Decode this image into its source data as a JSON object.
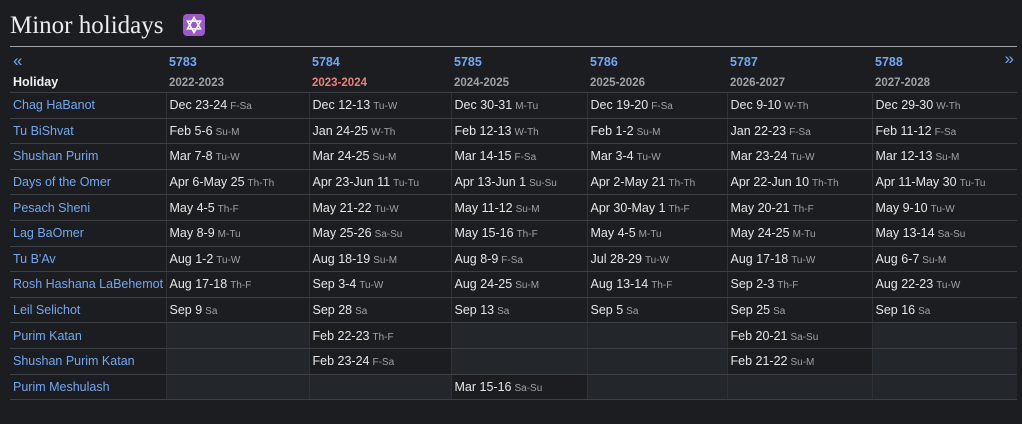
{
  "title": "Minor holidays",
  "nav": {
    "prev": "«",
    "next": "»"
  },
  "header": {
    "holiday": "Holiday"
  },
  "columns": [
    {
      "hebrew": "5783",
      "gregorian": "2022-2023"
    },
    {
      "hebrew": "5784",
      "gregorian": "2023-2024",
      "highlight": true
    },
    {
      "hebrew": "5785",
      "gregorian": "2024-2025"
    },
    {
      "hebrew": "5786",
      "gregorian": "2025-2026"
    },
    {
      "hebrew": "5787",
      "gregorian": "2026-2027"
    },
    {
      "hebrew": "5788",
      "gregorian": "2027-2028"
    }
  ],
  "rows": [
    {
      "holiday": "Chag HaBanot",
      "cells": [
        [
          "Dec 23-24",
          "F-Sa"
        ],
        [
          "Dec 12-13",
          "Tu-W"
        ],
        [
          "Dec 30-31",
          "M-Tu"
        ],
        [
          "Dec 19-20",
          "F-Sa"
        ],
        [
          "Dec 9-10",
          "W-Th"
        ],
        [
          "Dec 29-30",
          "W-Th"
        ]
      ]
    },
    {
      "holiday": "Tu BiShvat",
      "cells": [
        [
          "Feb 5-6",
          "Su-M"
        ],
        [
          "Jan 24-25",
          "W-Th"
        ],
        [
          "Feb 12-13",
          "W-Th"
        ],
        [
          "Feb 1-2",
          "Su-M"
        ],
        [
          "Jan 22-23",
          "F-Sa"
        ],
        [
          "Feb 11-12",
          "F-Sa"
        ]
      ]
    },
    {
      "holiday": "Shushan Purim",
      "cells": [
        [
          "Mar 7-8",
          "Tu-W"
        ],
        [
          "Mar 24-25",
          "Su-M"
        ],
        [
          "Mar 14-15",
          "F-Sa"
        ],
        [
          "Mar 3-4",
          "Tu-W"
        ],
        [
          "Mar 23-24",
          "Tu-W"
        ],
        [
          "Mar 12-13",
          "Su-M"
        ]
      ]
    },
    {
      "holiday": "Days of the Omer",
      "cells": [
        [
          "Apr 6-May 25",
          "Th-Th"
        ],
        [
          "Apr 23-Jun 11",
          "Tu-Tu"
        ],
        [
          "Apr 13-Jun 1",
          "Su-Su"
        ],
        [
          "Apr 2-May 21",
          "Th-Th"
        ],
        [
          "Apr 22-Jun 10",
          "Th-Th"
        ],
        [
          "Apr 11-May 30",
          "Tu-Tu"
        ]
      ]
    },
    {
      "holiday": "Pesach Sheni",
      "cells": [
        [
          "May 4-5",
          "Th-F"
        ],
        [
          "May 21-22",
          "Tu-W"
        ],
        [
          "May 11-12",
          "Su-M"
        ],
        [
          "Apr 30-May 1",
          "Th-F"
        ],
        [
          "May 20-21",
          "Th-F"
        ],
        [
          "May 9-10",
          "Tu-W"
        ]
      ]
    },
    {
      "holiday": "Lag BaOmer",
      "cells": [
        [
          "May 8-9",
          "M-Tu"
        ],
        [
          "May 25-26",
          "Sa-Su"
        ],
        [
          "May 15-16",
          "Th-F"
        ],
        [
          "May 4-5",
          "M-Tu"
        ],
        [
          "May 24-25",
          "M-Tu"
        ],
        [
          "May 13-14",
          "Sa-Su"
        ]
      ]
    },
    {
      "holiday": "Tu B'Av",
      "cells": [
        [
          "Aug 1-2",
          "Tu-W"
        ],
        [
          "Aug 18-19",
          "Su-M"
        ],
        [
          "Aug 8-9",
          "F-Sa"
        ],
        [
          "Jul 28-29",
          "Tu-W"
        ],
        [
          "Aug 17-18",
          "Tu-W"
        ],
        [
          "Aug 6-7",
          "Su-M"
        ]
      ]
    },
    {
      "holiday": "Rosh Hashana LaBehemot",
      "cells": [
        [
          "Aug 17-18",
          "Th-F"
        ],
        [
          "Sep 3-4",
          "Tu-W"
        ],
        [
          "Aug 24-25",
          "Su-M"
        ],
        [
          "Aug 13-14",
          "Th-F"
        ],
        [
          "Sep 2-3",
          "Th-F"
        ],
        [
          "Aug 22-23",
          "Tu-W"
        ]
      ]
    },
    {
      "holiday": "Leil Selichot",
      "cells": [
        [
          "Sep 9",
          "Sa"
        ],
        [
          "Sep 28",
          "Sa"
        ],
        [
          "Sep 13",
          "Sa"
        ],
        [
          "Sep 5",
          "Sa"
        ],
        [
          "Sep 25",
          "Sa"
        ],
        [
          "Sep 16",
          "Sa"
        ]
      ]
    },
    {
      "holiday": "Purim Katan",
      "cells": [
        null,
        [
          "Feb 22-23",
          "Th-F"
        ],
        null,
        null,
        [
          "Feb 20-21",
          "Sa-Su"
        ],
        null
      ]
    },
    {
      "holiday": "Shushan Purim Katan",
      "cells": [
        null,
        [
          "Feb 23-24",
          "F-Sa"
        ],
        null,
        null,
        [
          "Feb 21-22",
          "Su-M"
        ],
        null
      ]
    },
    {
      "holiday": "Purim Meshulash",
      "cells": [
        null,
        null,
        [
          "Mar 15-16",
          "Sa-Su"
        ],
        null,
        null,
        null
      ]
    }
  ]
}
